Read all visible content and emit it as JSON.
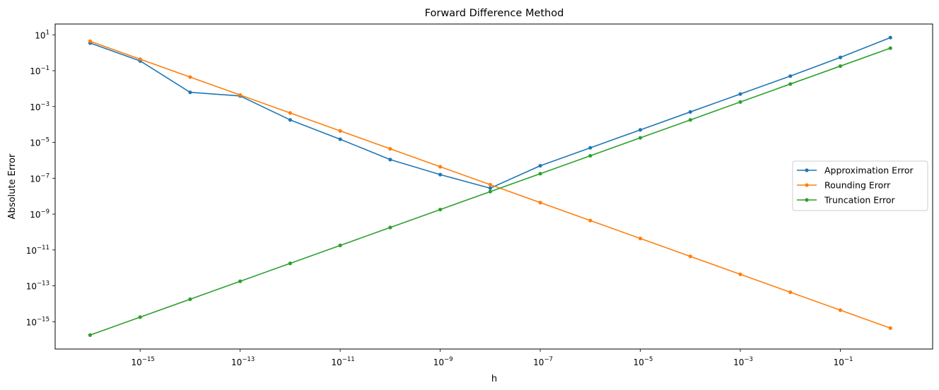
{
  "chart_data": {
    "type": "line",
    "title": "Forward Difference Method",
    "xlabel": "h",
    "ylabel": "Absolute Error",
    "xscale": "log",
    "yscale": "log",
    "xlim": [
      2e-17,
      7.0
    ],
    "ylim": [
      3e-17,
      40
    ],
    "x": [
      1e-16,
      1e-15,
      1e-14,
      1e-13,
      1e-12,
      1e-11,
      1e-10,
      1e-09,
      1e-08,
      1e-07,
      1e-06,
      1e-05,
      0.0001,
      0.001,
      0.01,
      0.1,
      1
    ],
    "x_ticks": [
      {
        "base": "10",
        "exp": "−15",
        "value": 1e-15
      },
      {
        "base": "10",
        "exp": "−13",
        "value": 1e-13
      },
      {
        "base": "10",
        "exp": "−11",
        "value": 1e-11
      },
      {
        "base": "10",
        "exp": "−9",
        "value": 1e-09
      },
      {
        "base": "10",
        "exp": "−7",
        "value": 1e-07
      },
      {
        "base": "10",
        "exp": "−5",
        "value": 1e-05
      },
      {
        "base": "10",
        "exp": "−3",
        "value": 0.001
      },
      {
        "base": "10",
        "exp": "−1",
        "value": 0.1
      }
    ],
    "y_ticks": [
      {
        "base": "10",
        "exp": "1",
        "value": 10
      },
      {
        "base": "10",
        "exp": "−1",
        "value": 0.1
      },
      {
        "base": "10",
        "exp": "−3",
        "value": 0.001
      },
      {
        "base": "10",
        "exp": "−5",
        "value": 1e-05
      },
      {
        "base": "10",
        "exp": "−7",
        "value": 1e-07
      },
      {
        "base": "10",
        "exp": "−9",
        "value": 1e-09
      },
      {
        "base": "10",
        "exp": "−11",
        "value": 1e-11
      },
      {
        "base": "10",
        "exp": "−13",
        "value": 1e-13
      },
      {
        "base": "10",
        "exp": "−15",
        "value": 1e-15
      }
    ],
    "series": [
      {
        "name": "Approximation Error",
        "color": "#1f77b4",
        "values": [
          3.5,
          0.35,
          0.0062,
          0.0039,
          0.00018,
          1.5e-05,
          1.1e-06,
          1.6e-07,
          2.8e-08,
          5e-07,
          5e-06,
          5e-05,
          0.0005,
          0.005,
          0.05,
          0.55,
          7.0
        ]
      },
      {
        "name": "Rounding Erorr",
        "color": "#ff7f0e",
        "values": [
          4.4,
          0.44,
          0.044,
          0.0044,
          0.00044,
          4.4e-05,
          4.4e-06,
          4.4e-07,
          4.4e-08,
          4.4e-09,
          4.4e-10,
          4.4e-11,
          4.4e-12,
          4.4e-13,
          4.4e-14,
          4.4e-15,
          4.4e-16
        ]
      },
      {
        "name": "Truncation Error",
        "color": "#2ca02c",
        "values": [
          1.8e-16,
          1.8e-15,
          1.8e-14,
          1.8e-13,
          1.8e-12,
          1.8e-11,
          1.8e-10,
          1.8e-09,
          1.8e-08,
          1.8e-07,
          1.8e-06,
          1.8e-05,
          0.00018,
          0.0018,
          0.018,
          0.18,
          1.8
        ]
      }
    ],
    "legend_position": "center-right",
    "grid": false
  }
}
